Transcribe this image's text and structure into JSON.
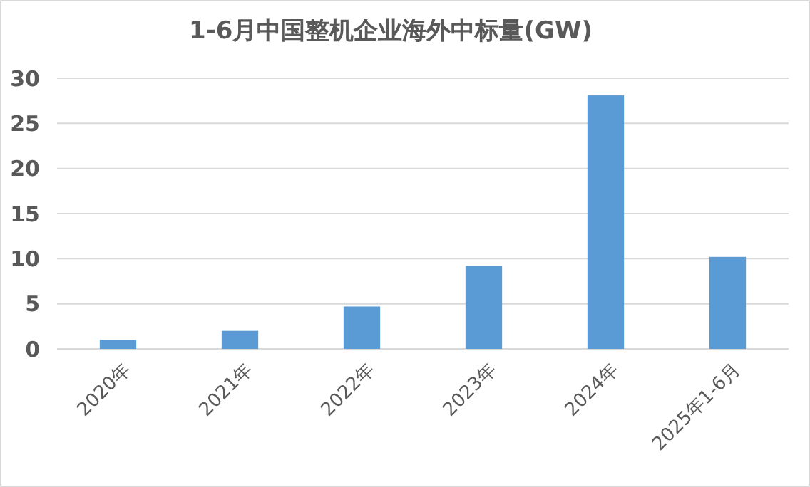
{
  "chart_data": {
    "type": "bar",
    "title": "1-6月中国整机企业海外中标量(GW)",
    "categories": [
      "2020年",
      "2021年",
      "2022年",
      "2023年",
      "2024年",
      "2025年1-6月"
    ],
    "values": [
      1.0,
      2.0,
      4.7,
      9.2,
      28.1,
      10.2
    ],
    "color": "#5b9bd5",
    "ylim": [
      0,
      30
    ],
    "yticks": [
      0,
      5,
      10,
      15,
      20,
      25,
      30
    ],
    "grid": "y"
  }
}
